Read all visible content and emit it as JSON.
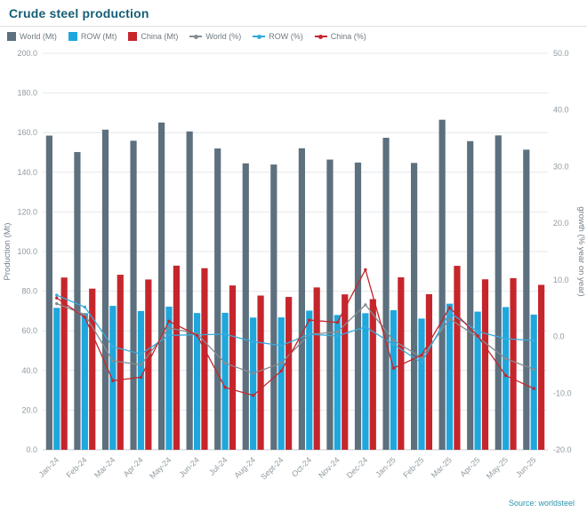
{
  "header": {
    "title": "Crude steel production"
  },
  "footer": {
    "source": "Source: worldsteel"
  },
  "chart_data": {
    "type": "bar",
    "subtype": "grouped-bars-with-growth-lines",
    "legend_position": "top",
    "grid": true,
    "categories": [
      "Jan-24",
      "Feb-24",
      "Mar-24",
      "Apr-24",
      "May-24",
      "Jun-24",
      "Jul-24",
      "Aug-24",
      "Sept-24",
      "Oct-24",
      "Nov-24",
      "Dec-24",
      "Jan-25",
      "Feb-25",
      "Mar-25",
      "Apr-25",
      "May-25",
      "Jun-25"
    ],
    "bar_series": [
      {
        "name": "World (Mt)",
        "color": "#5d707e",
        "values": [
          158.5,
          150.2,
          161.5,
          155.9,
          165.1,
          160.6,
          152.0,
          144.5,
          143.9,
          152.1,
          146.4,
          144.9,
          157.4,
          144.7,
          166.5,
          155.7,
          158.6,
          151.4
        ]
      },
      {
        "name": "ROW (Mt)",
        "color": "#1ea7dd",
        "values": [
          71.6,
          68.9,
          72.6,
          70.0,
          72.2,
          69.0,
          69.1,
          66.7,
          66.8,
          70.2,
          68.0,
          68.9,
          70.4,
          66.2,
          73.7,
          69.7,
          72.0,
          68.2
        ]
      },
      {
        "name": "China (Mt)",
        "color": "#c5262c",
        "values": [
          86.9,
          81.3,
          88.3,
          85.9,
          92.9,
          91.6,
          82.9,
          77.8,
          77.1,
          81.9,
          78.4,
          76.0,
          87.0,
          78.5,
          92.8,
          86.0,
          86.6,
          83.2
        ]
      }
    ],
    "line_series": [
      {
        "name": "World (%)",
        "color": "#848c92",
        "values": [
          5.8,
          3.9,
          -4.3,
          -5.0,
          1.5,
          0.5,
          -4.7,
          -6.5,
          -4.7,
          0.4,
          0.8,
          5.6,
          -0.7,
          -3.7,
          3.1,
          -0.1,
          -3.9,
          -5.8
        ]
      },
      {
        "name": "ROW (%)",
        "color": "#35aadc",
        "values": [
          7.3,
          5.2,
          -1.8,
          -3.1,
          0.2,
          0.3,
          0.4,
          -0.9,
          -1.6,
          0.4,
          0.1,
          1.7,
          -1.4,
          -4.6,
          4.2,
          0.9,
          -0.4,
          -0.7
        ]
      },
      {
        "name": "China (%)",
        "color": "#c5262c",
        "values": [
          6.8,
          3.4,
          -7.8,
          -7.2,
          2.7,
          0.2,
          -9.0,
          -10.4,
          -6.1,
          2.9,
          2.5,
          11.8,
          -5.6,
          -3.3,
          5.1,
          0.1,
          -6.9,
          -9.2
        ]
      }
    ],
    "left_axis": {
      "label": "Production (Mt)",
      "min": 0,
      "max": 200,
      "step": 20
    },
    "right_axis": {
      "label": "growth (% year on year)",
      "min": -20,
      "max": 50,
      "step": 10
    }
  },
  "colors": {
    "title": "#155e75",
    "source": "#2e94ab",
    "gridline": "#e4e7e9",
    "axis_line": "#c8cdd1",
    "tick_text": "#8f9aa0"
  }
}
